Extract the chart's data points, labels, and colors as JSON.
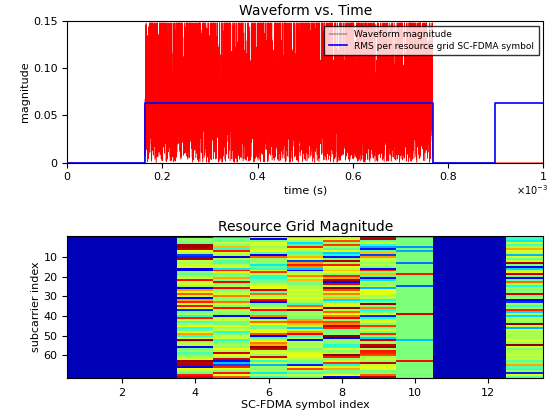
{
  "title1": "Waveform vs. Time",
  "xlabel1": "time (s)",
  "ylabel1": "magnitude",
  "legend1": [
    "Waveform magnitude",
    "RMS per resource grid SC-FDMA symbol"
  ],
  "ylim1": [
    0,
    0.15
  ],
  "xlim1": [
    0,
    0.001
  ],
  "title2": "Resource Grid Magnitude",
  "xlabel2": "SC-FDMA symbol index",
  "ylabel2": "subcarrier index",
  "n_subcarriers": 72,
  "n_symbols": 13,
  "waveform_color": "#FF0000",
  "rms_color": "#0000FF",
  "rms_value": 0.063,
  "rms_value2": 0.063,
  "waveform_start": 0.000163,
  "waveform_end": 0.000768,
  "rms_start2": 0.000898,
  "rms_end2": 0.001,
  "background_color": "#ffffff",
  "xticks1": [
    0,
    0.0002,
    0.0004,
    0.0006,
    0.0008,
    0.001
  ],
  "yticks1": [
    0,
    0.05,
    0.1,
    0.15
  ],
  "xticks2": [
    2,
    4,
    6,
    8,
    10,
    12
  ],
  "yticks2": [
    10,
    20,
    30,
    40,
    50,
    60
  ]
}
